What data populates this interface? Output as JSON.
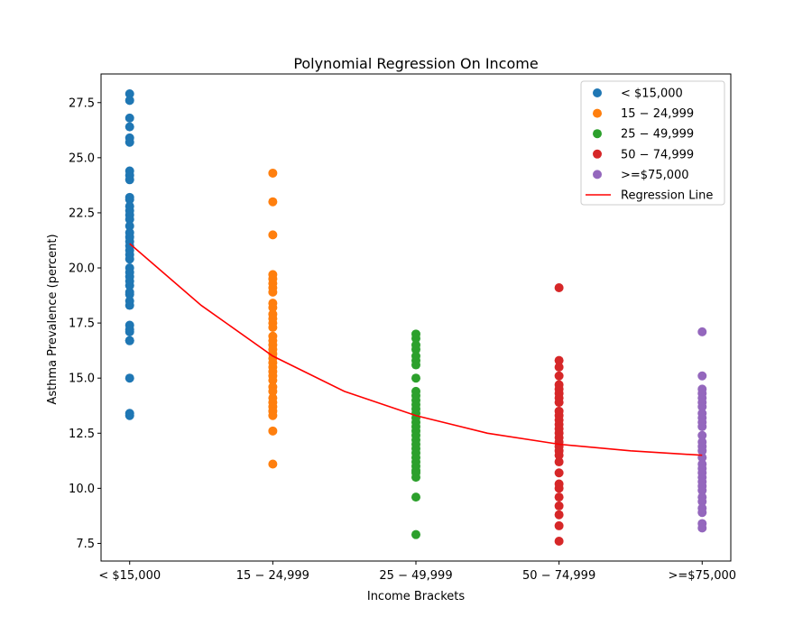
{
  "chart_data": {
    "type": "scatter",
    "title": "Polynomial Regression On Income",
    "xlabel": "Income Brackets",
    "ylabel": "Asthma Prevalence (percent)",
    "ylim": [
      6.7,
      28.8
    ],
    "yticks": [
      "7.5",
      "10.0",
      "12.5",
      "15.0",
      "17.5",
      "20.0",
      "22.5",
      "25.0",
      "27.5"
    ],
    "categories": [
      "< $15,000",
      "$15-$24,999",
      "$25-$49,999",
      "$50-$74,999",
      ">=$75,000"
    ],
    "xtick_labels": [
      "< $15,000",
      "15 − 24,999",
      "25 − 49,999",
      "50 − 74,999",
      ">=$75,000"
    ],
    "grid": false,
    "legend_position": "top-right",
    "series": [
      {
        "name": "< $15,000",
        "legend_label": "< $15,000",
        "color": "#1f77b4",
        "category_index": 0,
        "values": [
          27.9,
          27.6,
          26.8,
          26.4,
          25.9,
          25.7,
          24.4,
          24.2,
          24.0,
          23.2,
          23.1,
          22.8,
          22.6,
          22.4,
          22.2,
          21.9,
          21.6,
          21.4,
          21.2,
          21.0,
          20.8,
          20.6,
          20.4,
          20.0,
          19.8,
          19.6,
          19.4,
          19.2,
          18.9,
          18.8,
          18.5,
          18.3,
          17.4,
          17.2,
          17.1,
          16.7,
          16.7,
          15.0,
          13.4,
          13.3
        ]
      },
      {
        "name": "$15-$24,999",
        "legend_label": "15 − 24,999",
        "color": "#ff7f0e",
        "category_index": 1,
        "values": [
          24.3,
          23.0,
          21.5,
          19.7,
          19.5,
          19.3,
          19.1,
          18.9,
          18.4,
          18.2,
          17.9,
          17.7,
          17.5,
          17.3,
          16.9,
          16.7,
          16.5,
          16.3,
          16.1,
          15.9,
          15.7,
          15.5,
          15.3,
          15.1,
          14.9,
          14.6,
          14.4,
          14.1,
          13.9,
          13.7,
          13.5,
          13.3,
          12.6,
          11.1
        ]
      },
      {
        "name": "$25-$49,999",
        "legend_label": "25 − 49,999",
        "color": "#2ca02c",
        "category_index": 2,
        "values": [
          17.0,
          16.8,
          16.5,
          16.3,
          16.0,
          15.8,
          15.6,
          15.0,
          14.4,
          14.2,
          14.0,
          13.8,
          13.6,
          13.4,
          13.2,
          13.0,
          12.8,
          12.6,
          12.4,
          12.2,
          12.0,
          11.8,
          11.6,
          11.4,
          11.2,
          11.0,
          10.8,
          10.7,
          10.5,
          9.6,
          7.9
        ]
      },
      {
        "name": "$50-$74,999",
        "legend_label": "50 − 74,999",
        "color": "#d62728",
        "category_index": 3,
        "values": [
          19.1,
          15.8,
          15.5,
          15.1,
          14.7,
          14.5,
          14.3,
          14.1,
          13.9,
          13.5,
          13.3,
          13.1,
          12.9,
          12.7,
          12.5,
          12.3,
          12.1,
          11.9,
          11.7,
          11.5,
          11.2,
          10.7,
          10.2,
          10.0,
          9.6,
          9.2,
          8.8,
          8.3,
          7.6
        ]
      },
      {
        "name": ">=$75,000",
        "legend_label": ">=$75,000",
        "color": "#9467bd",
        "category_index": 4,
        "values": [
          17.1,
          15.1,
          14.5,
          14.3,
          14.1,
          13.9,
          13.7,
          13.4,
          13.2,
          13.0,
          12.8,
          12.4,
          12.1,
          11.9,
          11.7,
          11.4,
          11.1,
          10.9,
          10.7,
          10.5,
          10.3,
          10.1,
          9.9,
          9.6,
          9.4,
          9.1,
          8.9,
          8.4,
          8.2
        ]
      }
    ],
    "regression": {
      "name": "Regression Line",
      "legend_label": "Regression Line",
      "color": "#ff0000",
      "x": [
        0,
        0.5,
        1,
        1.5,
        2,
        2.5,
        3,
        3.5,
        4
      ],
      "y": [
        21.1,
        18.3,
        16.0,
        14.4,
        13.3,
        12.5,
        12.0,
        11.7,
        11.5
      ]
    }
  }
}
